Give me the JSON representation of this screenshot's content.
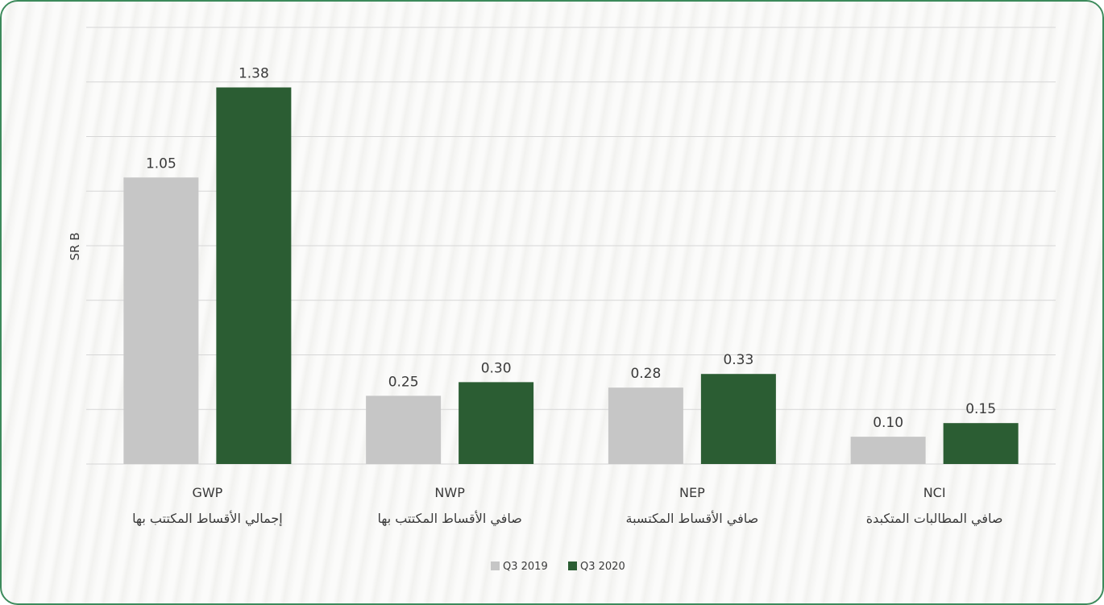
{
  "chart_data": {
    "type": "bar",
    "ylabel": "SR B",
    "ylim": [
      0,
      1.6
    ],
    "grid": true,
    "legend_position": "bottom-center",
    "categories": [
      {
        "code": "GWP",
        "arabic": "إجمالي الأقساط المكتتب بها"
      },
      {
        "code": "NWP",
        "arabic": "صافي الأقساط المكتتب بها"
      },
      {
        "code": "NEP",
        "arabic": "صافي الأقساط المكتسبة"
      },
      {
        "code": "NCI",
        "arabic": "صافي المطالبات المتكبدة"
      }
    ],
    "series": [
      {
        "name": "Q3 2019",
        "color": "#c6c6c6",
        "values": [
          1.05,
          0.25,
          0.28,
          0.1
        ],
        "labels": [
          "1.05",
          "0.25",
          "0.28",
          "0.10"
        ]
      },
      {
        "name": "Q3 2020",
        "color": "#2b5d33",
        "values": [
          1.38,
          0.3,
          0.33,
          0.15
        ],
        "labels": [
          "1.38",
          "0.30",
          "0.33",
          "0.15"
        ]
      }
    ]
  },
  "colors": {
    "border": "#3c8a5b",
    "grid": "#d6d6d6",
    "text": "#3a3a3a"
  }
}
